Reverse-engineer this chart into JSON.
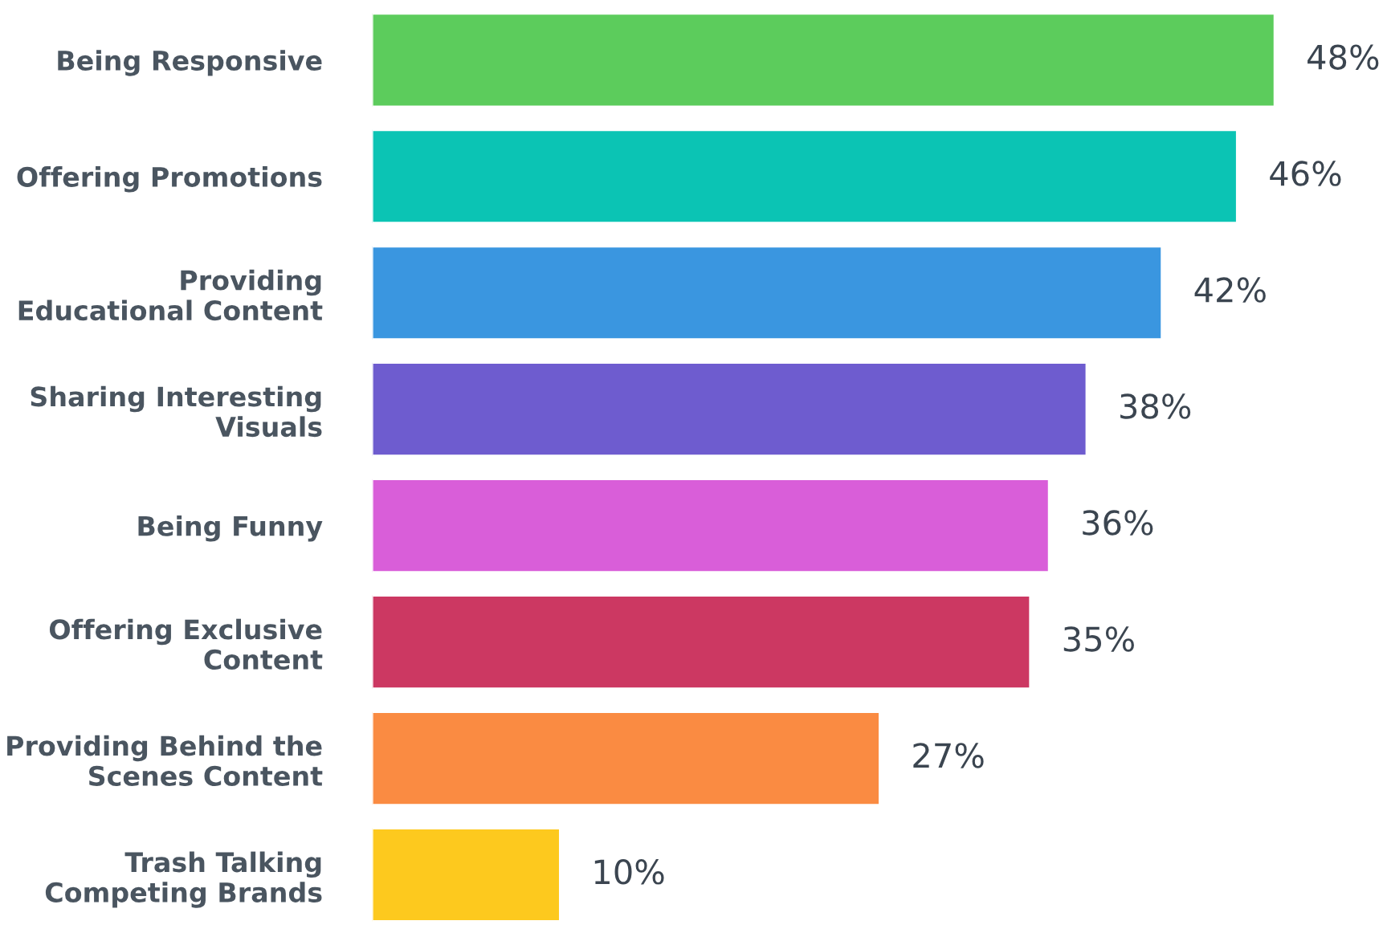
{
  "chart_data": {
    "type": "bar",
    "orientation": "horizontal",
    "categories": [
      "Being Responsive",
      "Offering Promotions",
      "Providing\nEducational Content",
      "Sharing Interesting\nVisuals",
      "Being Funny",
      "Offering Exclusive\nContent",
      "Providing Behind the\nScenes Content",
      "Trash Talking\nCompeting Brands"
    ],
    "values": [
      48,
      46,
      42,
      38,
      36,
      35,
      27,
      10
    ],
    "colors": [
      "#5ccc5c",
      "#0bc4b4",
      "#3a96e0",
      "#6e5ccf",
      "#d95ed9",
      "#cc3862",
      "#fa8b42",
      "#fdc91e"
    ],
    "value_labels": [
      "48%",
      "46%",
      "42%",
      "38%",
      "36%",
      "35%",
      "27%",
      "10%"
    ],
    "grid": false,
    "legend": false
  }
}
